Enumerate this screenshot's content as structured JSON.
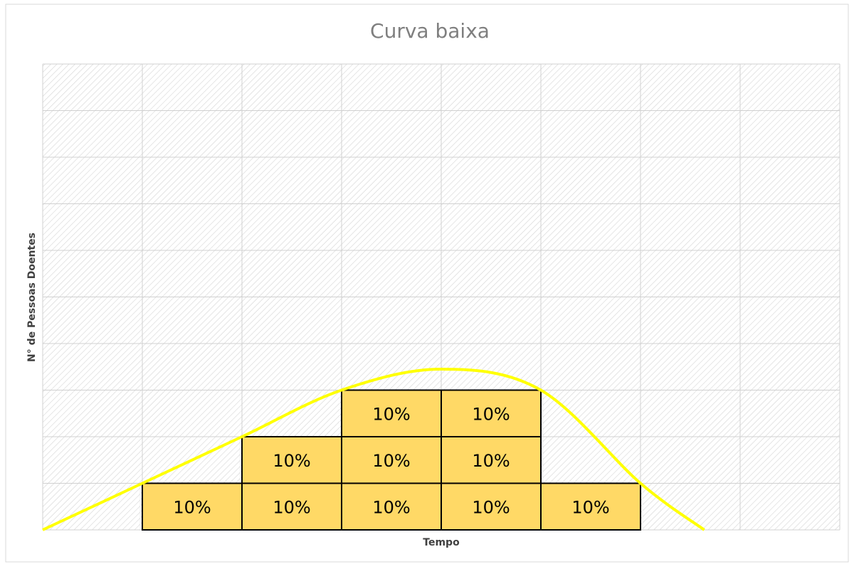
{
  "chart_data": {
    "type": "bar",
    "stacked": true,
    "title": "Curva baixa",
    "xlabel": "Tempo",
    "ylabel": "N° de Pessoas Doentes",
    "categories": [
      null,
      null,
      null,
      null,
      null,
      null,
      null,
      null
    ],
    "ylim": [
      0,
      100
    ],
    "yticks": [
      0,
      10,
      20,
      30,
      40,
      50,
      60,
      70,
      80,
      90,
      100
    ],
    "grid": true,
    "series": [
      {
        "color": "#ffd966",
        "values": [
          null,
          10,
          10,
          10,
          10,
          10,
          null,
          null
        ],
        "value_labels": [
          null,
          "10%",
          "10%",
          "10%",
          "10%",
          "10%",
          null,
          null
        ]
      },
      {
        "color": "#ffd966",
        "values": [
          null,
          null,
          10,
          10,
          10,
          null,
          null,
          null
        ],
        "value_labels": [
          null,
          null,
          "10%",
          "10%",
          "10%",
          null,
          null,
          null
        ]
      },
      {
        "color": "#ffd966",
        "values": [
          null,
          null,
          null,
          10,
          10,
          null,
          null,
          null
        ],
        "value_labels": [
          null,
          null,
          null,
          "10%",
          "10%",
          null,
          null,
          null
        ]
      }
    ],
    "curve": {
      "type": "line",
      "color": "#ffff00",
      "xlim": [
        0,
        8
      ],
      "x": [
        0,
        1,
        2,
        3,
        4,
        5,
        6,
        6.64
      ],
      "values": [
        0,
        10,
        20,
        30,
        34.5,
        30,
        10,
        0
      ]
    }
  }
}
